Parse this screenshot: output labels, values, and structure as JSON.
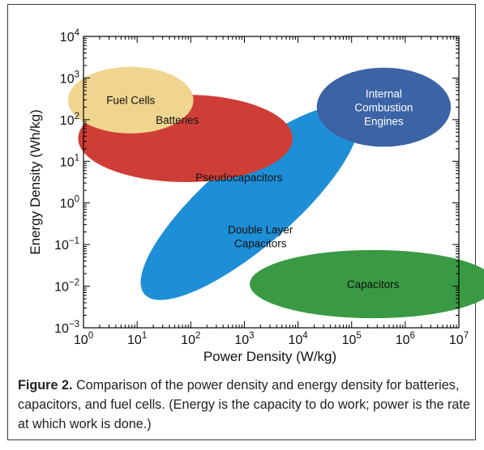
{
  "chart_data": {
    "type": "scatter",
    "subtype": "ellipse-region-plot",
    "xlabel": "Power Density (W/kg)",
    "ylabel": "Energy Density (Wh/kg)",
    "x_scale": "log",
    "y_scale": "log",
    "xlim": [
      1,
      10000000
    ],
    "ylim": [
      0.001,
      10000
    ],
    "x_ticks": [
      {
        "value": 1,
        "base": "10",
        "exp": "0"
      },
      {
        "value": 10,
        "base": "10",
        "exp": "1"
      },
      {
        "value": 100,
        "base": "10",
        "exp": "2"
      },
      {
        "value": 1000,
        "base": "10",
        "exp": "3"
      },
      {
        "value": 10000,
        "base": "10",
        "exp": "4"
      },
      {
        "value": 100000,
        "base": "10",
        "exp": "5"
      },
      {
        "value": 1000000,
        "base": "10",
        "exp": "6"
      },
      {
        "value": 10000000,
        "base": "10",
        "exp": "7"
      }
    ],
    "y_ticks": [
      {
        "value": 0.001,
        "base": "10",
        "exp": "−3"
      },
      {
        "value": 0.01,
        "base": "10",
        "exp": "−2"
      },
      {
        "value": 0.1,
        "base": "10",
        "exp": "−1"
      },
      {
        "value": 1,
        "base": "10",
        "exp": "0"
      },
      {
        "value": 10,
        "base": "10",
        "exp": "1"
      },
      {
        "value": 100,
        "base": "10",
        "exp": "2"
      },
      {
        "value": 1000,
        "base": "10",
        "exp": "3"
      },
      {
        "value": 10000,
        "base": "10",
        "exp": "4"
      }
    ],
    "regions": [
      {
        "name": "Capacitors",
        "label_lines": [
          "Capacitors"
        ],
        "color": "#3a9a44",
        "center_log": [
          5.4,
          -1.95
        ],
        "radii_log": [
          2.3,
          0.82
        ],
        "angle_deg": 0
      },
      {
        "name": "Double Layer Capacitors",
        "label_lines": [
          "Double Layer",
          "Capacitors"
        ],
        "color": "#1e8fd6",
        "center_log": [
          3.1,
          0.0
        ],
        "radii_log": [
          2.6,
          1.05
        ],
        "angle_deg": 41,
        "extra_labels": [
          {
            "text": "Pseudocapacitors",
            "at_log": [
              2.9,
              0.62
            ]
          }
        ],
        "label_at_log": [
          3.3,
          -0.8
        ]
      },
      {
        "name": "Batteries",
        "label_lines": [
          "Batteries"
        ],
        "color": "#cf3e36",
        "center_log": [
          1.9,
          1.55
        ],
        "radii_log": [
          2.0,
          1.05
        ],
        "angle_deg": 0,
        "label_at_log": [
          1.75,
          2.0
        ]
      },
      {
        "name": "Fuel Cells",
        "label_lines": [
          "Fuel Cells"
        ],
        "color": "#f0d590",
        "center_log": [
          0.88,
          2.47
        ],
        "radii_log": [
          1.17,
          0.8
        ],
        "angle_deg": 0
      },
      {
        "name": "Internal Combustion Engines",
        "label_lines": [
          "Internal",
          "Combustion",
          "Engines"
        ],
        "color": "#3b63a6",
        "center_log": [
          5.6,
          2.3
        ],
        "radii_log": [
          1.25,
          0.95
        ],
        "angle_deg": 0
      }
    ]
  },
  "caption": {
    "label": "Figure 2.",
    "text": "  Comparison of the power density and energy density for batteries, capacitors, and fuel cells. (Energy is the capacity to do work; power is the rate at which work is done.)"
  }
}
